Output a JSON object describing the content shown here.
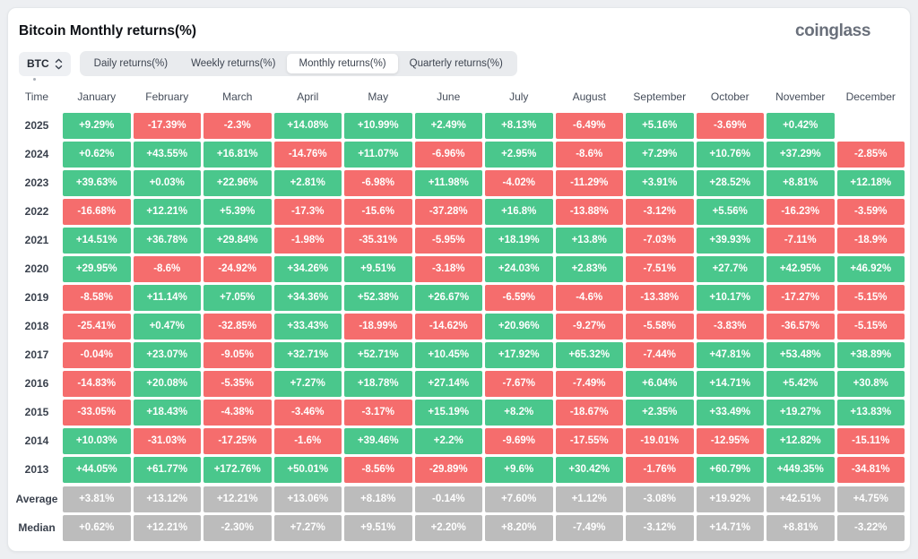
{
  "header": {
    "title": "Bitcoin Monthly returns(%)",
    "logo": "coinglass"
  },
  "controls": {
    "symbol_select": {
      "value": "BTC",
      "icon": "chevron-up-down-icon"
    },
    "tabs": [
      {
        "label": "Daily returns(%)",
        "active": false
      },
      {
        "label": "Weekly returns(%)",
        "active": false
      },
      {
        "label": "Monthly returns(%)",
        "active": true
      },
      {
        "label": "Quarterly returns(%)",
        "active": false
      }
    ]
  },
  "colors": {
    "positive": "#4ac78c",
    "negative": "#f56d6d",
    "neutral": "#bcbcbc"
  },
  "table": {
    "time_header": "Time",
    "months": [
      "January",
      "February",
      "March",
      "April",
      "May",
      "June",
      "July",
      "August",
      "September",
      "October",
      "November",
      "December"
    ],
    "rows": [
      {
        "label": "2025",
        "type": "year",
        "values": [
          "+9.29%",
          "-17.39%",
          "-2.3%",
          "+14.08%",
          "+10.99%",
          "+2.49%",
          "+8.13%",
          "-6.49%",
          "+5.16%",
          "-3.69%",
          "+0.42%",
          ""
        ]
      },
      {
        "label": "2024",
        "type": "year",
        "values": [
          "+0.62%",
          "+43.55%",
          "+16.81%",
          "-14.76%",
          "+11.07%",
          "-6.96%",
          "+2.95%",
          "-8.6%",
          "+7.29%",
          "+10.76%",
          "+37.29%",
          "-2.85%"
        ]
      },
      {
        "label": "2023",
        "type": "year",
        "values": [
          "+39.63%",
          "+0.03%",
          "+22.96%",
          "+2.81%",
          "-6.98%",
          "+11.98%",
          "-4.02%",
          "-11.29%",
          "+3.91%",
          "+28.52%",
          "+8.81%",
          "+12.18%"
        ]
      },
      {
        "label": "2022",
        "type": "year",
        "values": [
          "-16.68%",
          "+12.21%",
          "+5.39%",
          "-17.3%",
          "-15.6%",
          "-37.28%",
          "+16.8%",
          "-13.88%",
          "-3.12%",
          "+5.56%",
          "-16.23%",
          "-3.59%"
        ]
      },
      {
        "label": "2021",
        "type": "year",
        "values": [
          "+14.51%",
          "+36.78%",
          "+29.84%",
          "-1.98%",
          "-35.31%",
          "-5.95%",
          "+18.19%",
          "+13.8%",
          "-7.03%",
          "+39.93%",
          "-7.11%",
          "-18.9%"
        ]
      },
      {
        "label": "2020",
        "type": "year",
        "values": [
          "+29.95%",
          "-8.6%",
          "-24.92%",
          "+34.26%",
          "+9.51%",
          "-3.18%",
          "+24.03%",
          "+2.83%",
          "-7.51%",
          "+27.7%",
          "+42.95%",
          "+46.92%"
        ]
      },
      {
        "label": "2019",
        "type": "year",
        "values": [
          "-8.58%",
          "+11.14%",
          "+7.05%",
          "+34.36%",
          "+52.38%",
          "+26.67%",
          "-6.59%",
          "-4.6%",
          "-13.38%",
          "+10.17%",
          "-17.27%",
          "-5.15%"
        ]
      },
      {
        "label": "2018",
        "type": "year",
        "values": [
          "-25.41%",
          "+0.47%",
          "-32.85%",
          "+33.43%",
          "-18.99%",
          "-14.62%",
          "+20.96%",
          "-9.27%",
          "-5.58%",
          "-3.83%",
          "-36.57%",
          "-5.15%"
        ]
      },
      {
        "label": "2017",
        "type": "year",
        "values": [
          "-0.04%",
          "+23.07%",
          "-9.05%",
          "+32.71%",
          "+52.71%",
          "+10.45%",
          "+17.92%",
          "+65.32%",
          "-7.44%",
          "+47.81%",
          "+53.48%",
          "+38.89%"
        ]
      },
      {
        "label": "2016",
        "type": "year",
        "values": [
          "-14.83%",
          "+20.08%",
          "-5.35%",
          "+7.27%",
          "+18.78%",
          "+27.14%",
          "-7.67%",
          "-7.49%",
          "+6.04%",
          "+14.71%",
          "+5.42%",
          "+30.8%"
        ]
      },
      {
        "label": "2015",
        "type": "year",
        "values": [
          "-33.05%",
          "+18.43%",
          "-4.38%",
          "-3.46%",
          "-3.17%",
          "+15.19%",
          "+8.2%",
          "-18.67%",
          "+2.35%",
          "+33.49%",
          "+19.27%",
          "+13.83%"
        ]
      },
      {
        "label": "2014",
        "type": "year",
        "values": [
          "+10.03%",
          "-31.03%",
          "-17.25%",
          "-1.6%",
          "+39.46%",
          "+2.2%",
          "-9.69%",
          "-17.55%",
          "-19.01%",
          "-12.95%",
          "+12.82%",
          "-15.11%"
        ]
      },
      {
        "label": "2013",
        "type": "year",
        "values": [
          "+44.05%",
          "+61.77%",
          "+172.76%",
          "+50.01%",
          "-8.56%",
          "-29.89%",
          "+9.6%",
          "+30.42%",
          "-1.76%",
          "+60.79%",
          "+449.35%",
          "-34.81%"
        ]
      },
      {
        "label": "Average",
        "type": "summary",
        "values": [
          "+3.81%",
          "+13.12%",
          "+12.21%",
          "+13.06%",
          "+8.18%",
          "-0.14%",
          "+7.60%",
          "+1.12%",
          "-3.08%",
          "+19.92%",
          "+42.51%",
          "+4.75%"
        ]
      },
      {
        "label": "Median",
        "type": "summary",
        "values": [
          "+0.62%",
          "+12.21%",
          "-2.30%",
          "+7.27%",
          "+9.51%",
          "+2.20%",
          "+8.20%",
          "-7.49%",
          "-3.12%",
          "+14.71%",
          "+8.81%",
          "-3.22%"
        ]
      }
    ]
  }
}
